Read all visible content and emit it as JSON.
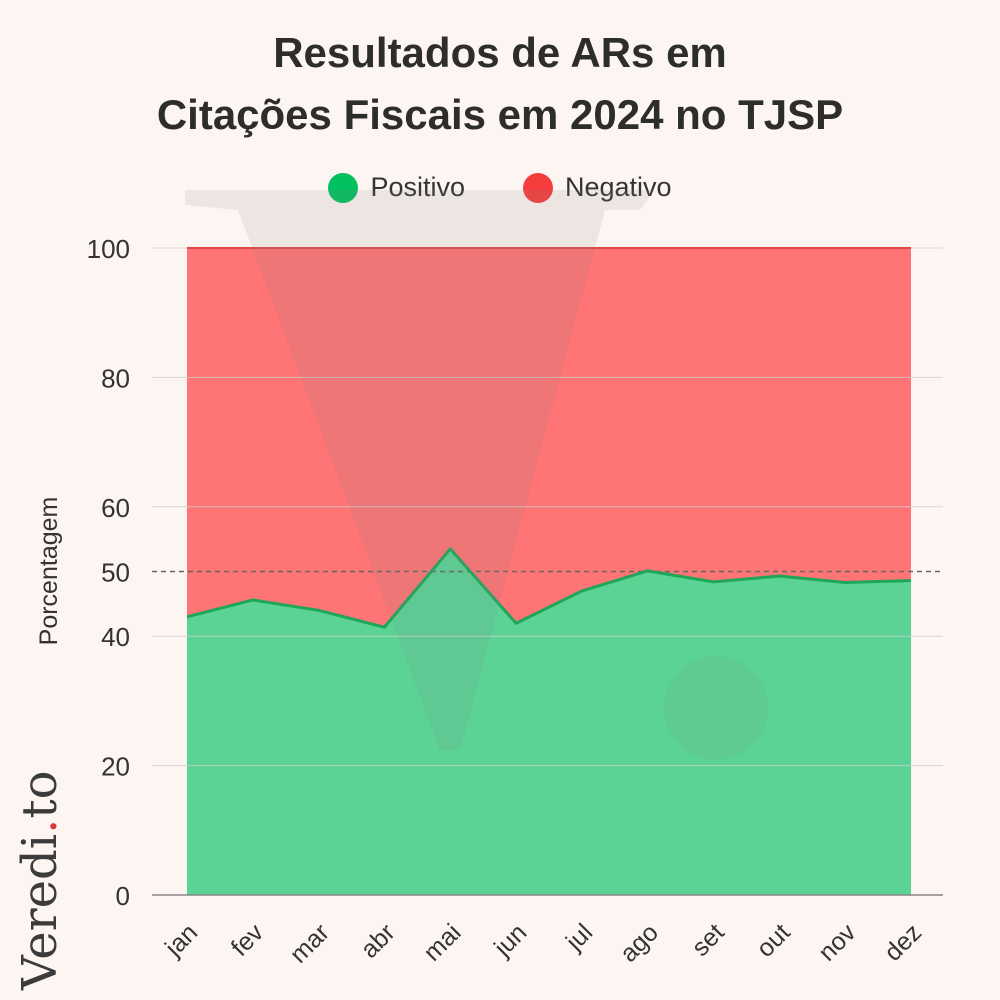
{
  "title_line1": "Resultados de ARs em",
  "title_line2": "Citações Fiscais em 2024 no TJSP",
  "legend": [
    {
      "label": "Positivo",
      "color": "#00c060"
    },
    {
      "label": "Negativo",
      "color": "#f53d3d"
    }
  ],
  "brand": {
    "name_a": "Veredi",
    "dot": ".",
    "name_b": "to"
  },
  "chart_data": {
    "type": "area",
    "stacked_percent": true,
    "categories": [
      "jan",
      "fev",
      "mar",
      "abr",
      "mai",
      "jun",
      "jul",
      "ago",
      "set",
      "out",
      "nov",
      "dez"
    ],
    "series": [
      {
        "name": "Positivo",
        "color": "#5ad394",
        "line_color": "#1fa65a",
        "values": [
          43,
          45.6,
          44,
          41.4,
          53.5,
          42,
          47,
          50.1,
          48.4,
          49.3,
          48.3,
          48.6
        ]
      },
      {
        "name": "Negativo",
        "color": "#ff7474",
        "values": [
          57,
          54.4,
          56,
          58.6,
          46.5,
          58,
          53,
          49.9,
          51.6,
          50.7,
          51.7,
          51.4
        ]
      }
    ],
    "ylabel": "Porcentagem",
    "xlabel": "",
    "yticks": [
      0,
      20,
      40,
      50,
      60,
      80,
      100
    ],
    "ylim": [
      0,
      100
    ],
    "reference_line": 50,
    "grid": true
  }
}
